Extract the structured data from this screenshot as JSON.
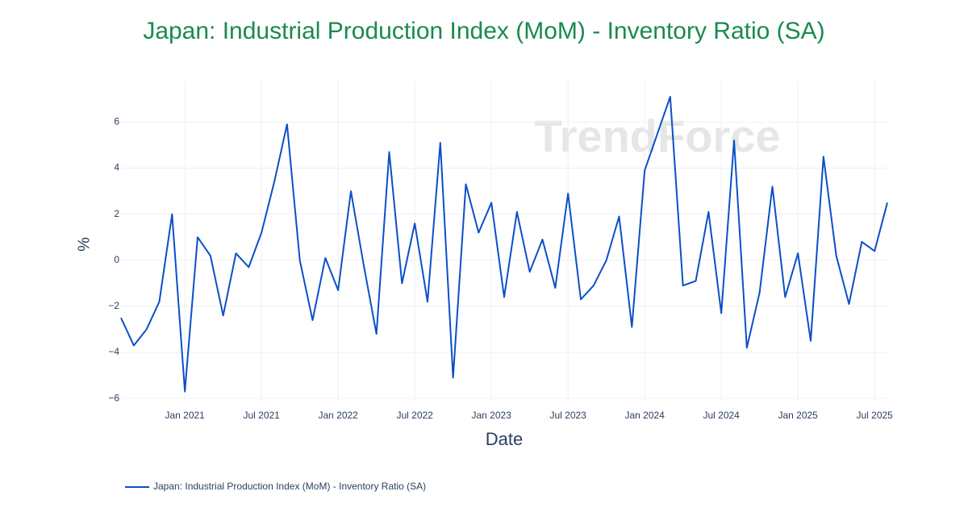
{
  "chart_data": {
    "type": "line",
    "title": "Japan:  Industrial Production Index (MoM) - Inventory Ratio (SA)",
    "watermark": "TrendForce",
    "xlabel": "Date",
    "ylabel": "%",
    "x": [
      "2020-08",
      "2020-09",
      "2020-10",
      "2020-11",
      "2020-12",
      "2021-01",
      "2021-02",
      "2021-03",
      "2021-04",
      "2021-05",
      "2021-06",
      "2021-07",
      "2021-08",
      "2021-09",
      "2021-10",
      "2021-11",
      "2021-12",
      "2022-01",
      "2022-02",
      "2022-03",
      "2022-04",
      "2022-05",
      "2022-06",
      "2022-07",
      "2022-08",
      "2022-09",
      "2022-10",
      "2022-11",
      "2022-12",
      "2023-01",
      "2023-02",
      "2023-03",
      "2023-04",
      "2023-05",
      "2023-06",
      "2023-07",
      "2023-08",
      "2023-09",
      "2023-10",
      "2023-11",
      "2023-12",
      "2024-01",
      "2024-02",
      "2024-03",
      "2024-04",
      "2024-05",
      "2024-06",
      "2024-07",
      "2024-08",
      "2024-09",
      "2024-10",
      "2024-11",
      "2024-12",
      "2025-01",
      "2025-02",
      "2025-03",
      "2025-04",
      "2025-05",
      "2025-06",
      "2025-07",
      "2025-08"
    ],
    "series": [
      {
        "name": "Japan:  Industrial Production Index (MoM) - Inventory Ratio (SA)",
        "color": "#0b4fc9",
        "values": [
          -2.5,
          -3.7,
          -3.0,
          -1.8,
          2.0,
          -5.7,
          1.0,
          0.2,
          -2.4,
          0.3,
          -0.3,
          1.2,
          3.4,
          5.9,
          0.0,
          -2.6,
          0.1,
          -1.3,
          3.0,
          -0.2,
          -3.2,
          4.7,
          -1.0,
          1.6,
          -1.8,
          5.1,
          -5.1,
          3.3,
          1.2,
          2.5,
          -1.6,
          2.1,
          -0.5,
          0.9,
          -1.2,
          2.9,
          -1.7,
          -1.1,
          0.0,
          1.9,
          -2.9,
          3.9,
          5.5,
          7.1,
          -1.1,
          -0.9,
          2.1,
          -2.3,
          5.2,
          -3.8,
          -1.4,
          3.2,
          -1.6,
          0.3,
          -3.5,
          4.5,
          0.2,
          -1.9,
          0.8,
          0.4,
          2.5
        ]
      }
    ],
    "xlim": [
      "2020-08",
      "2025-08"
    ],
    "xticks": [
      {
        "value": "2021-01",
        "label": "Jan 2021"
      },
      {
        "value": "2021-07",
        "label": "Jul 2021"
      },
      {
        "value": "2022-01",
        "label": "Jan 2022"
      },
      {
        "value": "2022-07",
        "label": "Jul 2022"
      },
      {
        "value": "2023-01",
        "label": "Jan 2023"
      },
      {
        "value": "2023-07",
        "label": "Jul 2023"
      },
      {
        "value": "2024-01",
        "label": "Jan 2024"
      },
      {
        "value": "2024-07",
        "label": "Jul 2024"
      },
      {
        "value": "2025-01",
        "label": "Jan 2025"
      },
      {
        "value": "2025-07",
        "label": "Jul 2025"
      }
    ],
    "ylim": [
      -6.1,
      7.8
    ],
    "yticks": [
      {
        "value": -6,
        "label": "−6"
      },
      {
        "value": -4,
        "label": "−4"
      },
      {
        "value": -2,
        "label": "−2"
      },
      0,
      2,
      4,
      6
    ],
    "grid": true,
    "legend": "bottom-left"
  }
}
